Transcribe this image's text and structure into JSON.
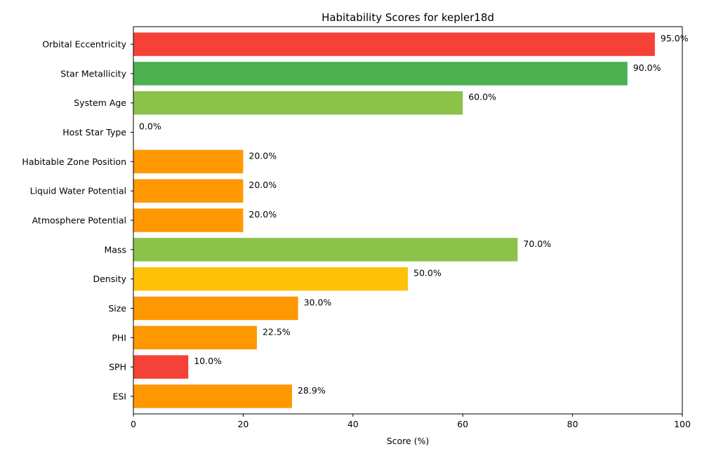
{
  "chart_data": {
    "type": "bar",
    "orientation": "horizontal",
    "title": "Habitability Scores for kepler18d",
    "xlabel": "Score (%)",
    "ylabel": "",
    "xlim": [
      0,
      100
    ],
    "xticks": [
      0,
      20,
      40,
      60,
      80,
      100
    ],
    "grid": false,
    "categories": [
      "ESI",
      "SPH",
      "PHI",
      "Size",
      "Density",
      "Mass",
      "Atmosphere Potential",
      "Liquid Water Potential",
      "Habitable Zone Position",
      "Host Star Type",
      "System Age",
      "Star Metallicity",
      "Orbital Eccentricity"
    ],
    "values": [
      28.9,
      10.0,
      22.5,
      30.0,
      50.0,
      70.0,
      20.0,
      20.0,
      20.0,
      0.0,
      60.0,
      90.0,
      95.0
    ],
    "value_labels": [
      "28.9%",
      "10.0%",
      "22.5%",
      "30.0%",
      "50.0%",
      "70.0%",
      "20.0%",
      "20.0%",
      "20.0%",
      "0.0%",
      "60.0%",
      "90.0%",
      "95.0%"
    ],
    "colors": [
      "#FF9800",
      "#F44336",
      "#FF9800",
      "#FF9800",
      "#FFC107",
      "#8BC34A",
      "#FF9800",
      "#FF9800",
      "#FF9800",
      "#F44336",
      "#8BC34A",
      "#4CAF50",
      "#F44336"
    ]
  }
}
